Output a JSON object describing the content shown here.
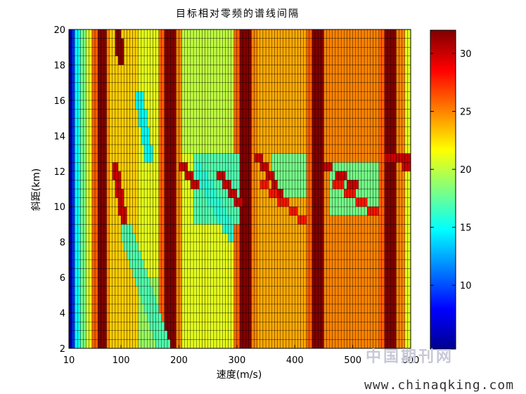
{
  "chart_data": {
    "type": "heatmap",
    "title": "目标相对零频的谱线间隔",
    "xlabel": "速度(m/s)",
    "ylabel": "斜距(km)",
    "xlim": [
      10,
      600
    ],
    "ylim": [
      2,
      20
    ],
    "x_ticks": [
      10,
      100,
      200,
      300,
      400,
      500,
      600
    ],
    "y_ticks": [
      2,
      4,
      6,
      8,
      10,
      12,
      14,
      16,
      18,
      20
    ],
    "colorbar": {
      "clim": [
        4.5,
        32
      ],
      "ticks": [
        10,
        15,
        20,
        25,
        30
      ],
      "colormap": "jet"
    },
    "grid": {
      "x_step": 5,
      "y_step": 0.5
    },
    "background_value": 21,
    "features": [
      {
        "kind": "stripe",
        "x": [
          10,
          17
        ],
        "value": 5
      },
      {
        "kind": "stripe",
        "x": [
          17,
          22
        ],
        "value": 9
      },
      {
        "kind": "stripe",
        "x": [
          22,
          30
        ],
        "value": 15
      },
      {
        "kind": "stripe",
        "x": [
          30,
          40
        ],
        "value": 18
      },
      {
        "kind": "stripe",
        "x": [
          40,
          50
        ],
        "value": 21
      },
      {
        "kind": "stripe",
        "x": [
          50,
          58
        ],
        "value": 26
      },
      {
        "kind": "stripe",
        "x": [
          58,
          75
        ],
        "value": 32
      },
      {
        "kind": "stripe",
        "x": [
          75,
          82
        ],
        "value": 25
      },
      {
        "kind": "stripe",
        "x": [
          175,
          195
        ],
        "value": 32
      },
      {
        "kind": "stripe",
        "x": [
          165,
          175
        ],
        "value": 26
      },
      {
        "kind": "stripe",
        "x": [
          195,
          205
        ],
        "value": 25
      },
      {
        "kind": "stripe",
        "x": [
          305,
          325
        ],
        "value": 32
      },
      {
        "kind": "stripe",
        "x": [
          295,
          305
        ],
        "value": 26
      },
      {
        "kind": "stripe",
        "x": [
          325,
          335
        ],
        "value": 25
      },
      {
        "kind": "stripe",
        "x": [
          430,
          450
        ],
        "value": 32
      },
      {
        "kind": "stripe",
        "x": [
          420,
          430
        ],
        "value": 26
      },
      {
        "kind": "stripe",
        "x": [
          450,
          460
        ],
        "value": 25
      },
      {
        "kind": "stripe",
        "x": [
          555,
          575
        ],
        "value": 32
      },
      {
        "kind": "stripe",
        "x": [
          545,
          555
        ],
        "value": 26
      },
      {
        "kind": "stripe",
        "x": [
          575,
          590
        ],
        "value": 25
      },
      {
        "kind": "region",
        "x": [
          80,
          130
        ],
        "y": [
          2,
          20
        ],
        "value": 23
      },
      {
        "kind": "region",
        "x": [
          205,
          295
        ],
        "y": [
          2,
          9
        ],
        "value": 21
      },
      {
        "kind": "region",
        "x": [
          335,
          420
        ],
        "y": [
          2,
          20
        ],
        "value": 24
      },
      {
        "kind": "region",
        "x": [
          460,
          545
        ],
        "y": [
          2,
          20
        ],
        "value": 25
      },
      {
        "kind": "region",
        "x": [
          205,
          295
        ],
        "y": [
          13,
          20
        ],
        "value": 20
      },
      {
        "kind": "region",
        "x": [
          225,
          305
        ],
        "y": [
          9,
          13
        ],
        "value": 17
      },
      {
        "kind": "region",
        "x": [
          360,
          420
        ],
        "y": [
          10.5,
          13
        ],
        "value": 18
      },
      {
        "kind": "region",
        "x": [
          460,
          545
        ],
        "y": [
          9.5,
          12.5
        ],
        "value": 18
      },
      {
        "kind": "region",
        "x": [
          130,
          165
        ],
        "y": [
          2,
          6
        ],
        "value": 19
      },
      {
        "kind": "diag",
        "from": [
          95,
          20
        ],
        "to": [
          100,
          18
        ],
        "width": 6,
        "value": 32
      },
      {
        "kind": "diag",
        "from": [
          130,
          16.5
        ],
        "to": [
          150,
          12.5
        ],
        "width": 8,
        "value": 15
      },
      {
        "kind": "diag",
        "from": [
          90,
          12.5
        ],
        "to": [
          110,
          8
        ],
        "width": 6,
        "value": 30
      },
      {
        "kind": "diag",
        "from": [
          110,
          8.5
        ],
        "to": [
          175,
          2
        ],
        "width": 12,
        "value": 17
      },
      {
        "kind": "diag",
        "from": [
          205,
          12.5
        ],
        "to": [
          230,
          11
        ],
        "width": 6,
        "value": 30
      },
      {
        "kind": "diag",
        "from": [
          235,
          12
        ],
        "to": [
          290,
          8.5
        ],
        "width": 10,
        "value": 16
      },
      {
        "kind": "diag",
        "from": [
          270,
          11.8
        ],
        "to": [
          310,
          10
        ],
        "width": 6,
        "value": 30
      },
      {
        "kind": "diag",
        "from": [
          335,
          12.8
        ],
        "to": [
          390,
          10
        ],
        "width": 6,
        "value": 30
      },
      {
        "kind": "diag",
        "from": [
          340,
          11.5
        ],
        "to": [
          420,
          9
        ],
        "width": 6,
        "value": 28
      },
      {
        "kind": "diag",
        "from": [
          455,
          12.3
        ],
        "to": [
          510,
          11
        ],
        "width": 6,
        "value": 30
      },
      {
        "kind": "diag",
        "from": [
          465,
          11.5
        ],
        "to": [
          545,
          9.5
        ],
        "width": 6,
        "value": 28
      },
      {
        "kind": "diag",
        "from": [
          575,
          12.8
        ],
        "to": [
          600,
          12.2
        ],
        "width": 8,
        "value": 30
      },
      {
        "kind": "region",
        "x": [
          555,
          600
        ],
        "y": [
          12.5,
          13
        ],
        "value": 30
      }
    ]
  },
  "watermark": {
    "cn": "中国期刊网",
    "url": "www.chinaqking.com"
  }
}
